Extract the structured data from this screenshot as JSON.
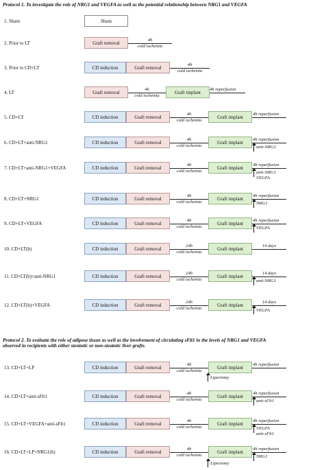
{
  "protocol1": {
    "title": "Protocol 1. To investigate the role of NRG1 and VEGFA as well as the potential relationship between NRG1 and VEGFA"
  },
  "protocol2": {
    "title_line1": "Protocol 2. To evaluate the role of adipose tissue as well as the involvement of circulating sFlt1 in the levels of NRG1 and VEGFA",
    "title_line2": "observed in recipients with either stentotic or non-steatotic liver grafts."
  },
  "rows": [
    {
      "label": "1. Sham",
      "sham": "Sham"
    },
    {
      "label": "2. Prior to LT",
      "graft_removal": "Graft removal",
      "ischemia_time": "4h",
      "ischemia": "cold ischemia"
    },
    {
      "label": "3. Prior to CD+LT",
      "cd_induction": "CD induction",
      "graft_removal": "Graft removal",
      "ischemia_time": "4h",
      "ischemia": "cold ischemia"
    },
    {
      "label": "4. LT",
      "graft_removal": "Graft removal",
      "ischemia_time": "4h",
      "ischemia": "cold ischemia",
      "graft_implant": "Graft implant",
      "after": "4h reperfusion"
    },
    {
      "label": "5. CD+LT",
      "cd_induction": "CD induction",
      "graft_removal": "Graft removal",
      "ischemia_time": "4h",
      "ischemia": "cold ischemia",
      "graft_implant": "Graft implant",
      "after": "4h reperfusion"
    },
    {
      "label": "6. CD+LT+anti-NRG1",
      "cd_induction": "CD induction",
      "graft_removal": "Graft removal",
      "ischemia_time": "4h",
      "ischemia": "cold ischemia",
      "graft_implant": "Graft implant",
      "after": "4h reperfusion",
      "treatment": [
        "anti-NRG1"
      ]
    },
    {
      "label": "7. CD+LT+anti-NRG1+VEGFA",
      "cd_induction": "CD induction",
      "graft_removal": "Graft removal",
      "ischemia_time": "4h",
      "ischemia": "cold ischemia",
      "graft_implant": "Graft implant",
      "after": "4h reperfusion",
      "treatment": [
        "anti-NRG1",
        "VEGFA"
      ]
    },
    {
      "label": "8. CD+LT+NRG1",
      "cd_induction": "CD induction",
      "graft_removal": "Graft removal",
      "ischemia_time": "4h",
      "ischemia": "cold ischemia",
      "graft_implant": "Graft implant",
      "after": "4h reperfusion",
      "treatment": [
        "NRG1"
      ]
    },
    {
      "label": "9. CD+LT+VEGFA",
      "cd_induction": "CD induction",
      "graft_removal": "Graft removal",
      "ischemia_time": "4h",
      "ischemia": "cold ischemia",
      "graft_implant": "Graft implant",
      "after": "4h reperfusion",
      "treatment": [
        "VEGFA"
      ]
    },
    {
      "label": "10. CD+LT(b)",
      "cd_induction": "CD induction",
      "graft_removal": "Graft removal",
      "ischemia_time": "24h",
      "ischemia": "cold ischemia",
      "graft_implant": "Graft implant",
      "after": "14 days"
    },
    {
      "label": "11. CD+LT(b)+anti-NRG1",
      "cd_induction": "CD induction",
      "graft_removal": "Graft removal",
      "ischemia_time": "24h",
      "ischemia": "cold ischemia",
      "graft_implant": "Graft implant",
      "after": "14 days",
      "treatment": [
        "anti-NRG1"
      ]
    },
    {
      "label": "12. CD+LT(b)+VEGFA",
      "cd_induction": "CD induction",
      "graft_removal": "Graft removal",
      "ischemia_time": "24h",
      "ischemia": "cold ischemia",
      "graft_implant": "Graft implant",
      "after": "14 days",
      "treatment": [
        "VEGFA"
      ]
    },
    {
      "label": "13. CD+LT+LP",
      "cd_induction": "CD induction",
      "graft_removal": "Graft removal",
      "ischemia_time": "4h",
      "ischemia": "cold ischemia",
      "graft_implant": "Graft implant",
      "after": "4h reperfusion",
      "lipectomy": "Lipectomy"
    },
    {
      "label": "14. CD+LT+anti-sFlt1",
      "cd_induction": "CD induction",
      "graft_removal": "Graft removal",
      "ischemia_time": "4h",
      "ischemia": "cold ischemia",
      "graft_implant": "Graft implant",
      "after": "4h reperfusion",
      "treatment": [
        "anti-sFlt1"
      ]
    },
    {
      "label": "15. CD+LT+VEGFA+anti-sFlt1",
      "cd_induction": "CD induction",
      "graft_removal": "Graft removal",
      "ischemia_time": "4h",
      "ischemia": "cold ischemia",
      "graft_implant": "Graft implant",
      "after": "4h reperfusion",
      "treatment": [
        "VEGFA",
        "anti-sFlt1"
      ]
    },
    {
      "label": "16. CD+LT+LP+NRG1(b)",
      "cd_induction": "CD induction",
      "graft_removal": "Graft removal",
      "ischemia_time": "4h",
      "ischemia": "cold ischemia",
      "graft_implant": "Graft implant",
      "after": "4h reperfusion",
      "treatment": [
        "NRG1"
      ],
      "lipectomy": "Lipectomy"
    }
  ]
}
